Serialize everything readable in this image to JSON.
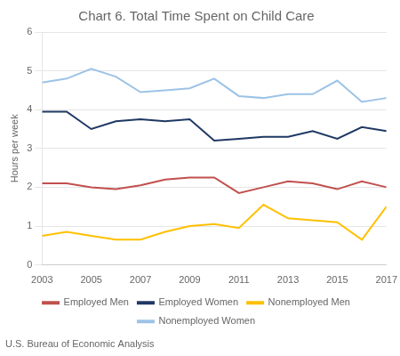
{
  "chart_data": {
    "type": "line",
    "title": "Chart 6. Total Time Spent on Child Care",
    "y_label": "Hours per week",
    "source": "U.S. Bureau of Economic Analysis",
    "x": [
      2003,
      2004,
      2005,
      2006,
      2007,
      2008,
      2009,
      2010,
      2011,
      2012,
      2013,
      2014,
      2015,
      2016,
      2017
    ],
    "series": [
      {
        "name": "Employed Men",
        "color": "#c0504d",
        "values": [
          2.1,
          2.1,
          2.0,
          1.95,
          2.05,
          2.2,
          2.25,
          2.25,
          1.85,
          2.0,
          2.15,
          2.1,
          1.95,
          2.15,
          2.0
        ]
      },
      {
        "name": "Employed Women",
        "color": "#1f3864",
        "values": [
          3.95,
          3.95,
          3.5,
          3.7,
          3.75,
          3.7,
          3.75,
          3.2,
          3.25,
          3.3,
          3.3,
          3.45,
          3.25,
          3.55,
          3.45
        ]
      },
      {
        "name": "Nonemployed Men",
        "color": "#ffc000",
        "values": [
          0.75,
          0.85,
          0.75,
          0.65,
          0.65,
          0.85,
          1.0,
          1.05,
          0.95,
          1.55,
          1.2,
          1.15,
          1.1,
          0.65,
          1.5
        ]
      },
      {
        "name": "Nonemployed Women",
        "color": "#9dc3e6",
        "values": [
          4.7,
          4.8,
          5.05,
          4.85,
          4.45,
          4.5,
          4.55,
          4.8,
          4.35,
          4.3,
          4.4,
          4.4,
          4.75,
          4.2,
          4.3
        ]
      }
    ],
    "xlim": [
      2003,
      2017
    ],
    "xticks": [
      2003,
      2005,
      2007,
      2009,
      2011,
      2013,
      2015,
      2017
    ],
    "ylim": [
      0,
      6
    ],
    "yticks": [
      0,
      1,
      2,
      3,
      4,
      5,
      6
    ],
    "grid": "y",
    "legend": "bottom"
  }
}
